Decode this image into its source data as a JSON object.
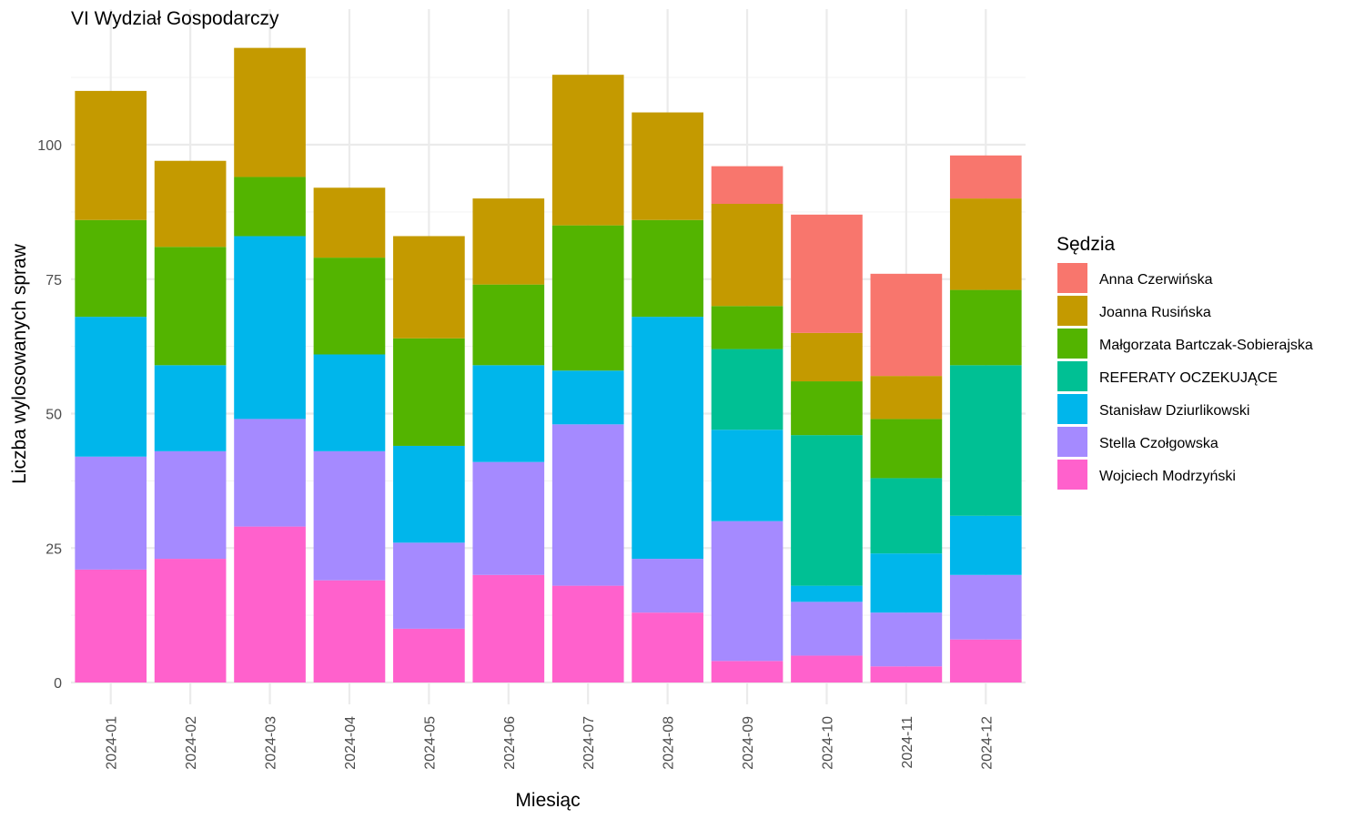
{
  "chart_data": {
    "type": "bar",
    "stacked": true,
    "title": "VI Wydział Gospodarczy",
    "xlabel": "Miesiąc",
    "ylabel": "Liczba wylosowanych spraw",
    "ylim": [
      0,
      120
    ],
    "yticks": [
      0,
      25,
      50,
      75,
      100
    ],
    "grid": true,
    "legend_title": "Sędzia",
    "legend_position": "right",
    "categories": [
      "2024-01",
      "2024-02",
      "2024-03",
      "2024-04",
      "2024-05",
      "2024-06",
      "2024-07",
      "2024-08",
      "2024-09",
      "2024-10",
      "2024-11",
      "2024-12"
    ],
    "series": [
      {
        "name": "Wojciech Modrzyński",
        "color": "#FF61CC",
        "values": [
          21,
          23,
          29,
          19,
          10,
          20,
          18,
          13,
          4,
          5,
          3,
          8
        ]
      },
      {
        "name": "Stella Czołgowska",
        "color": "#A58AFF",
        "values": [
          21,
          20,
          20,
          24,
          16,
          21,
          30,
          10,
          26,
          10,
          10,
          12
        ]
      },
      {
        "name": "Stanisław Dziurlikowski",
        "color": "#00B6EB",
        "values": [
          26,
          16,
          34,
          18,
          18,
          18,
          10,
          45,
          17,
          3,
          11,
          11
        ]
      },
      {
        "name": "REFERATY OCZEKUJĄCE",
        "color": "#00C094",
        "values": [
          0,
          0,
          0,
          0,
          0,
          0,
          0,
          0,
          15,
          28,
          14,
          28
        ]
      },
      {
        "name": "Małgorzata Bartczak-Sobierajska",
        "color": "#53B400",
        "values": [
          18,
          22,
          11,
          18,
          20,
          15,
          27,
          18,
          8,
          10,
          11,
          14
        ]
      },
      {
        "name": "Joanna Rusińska",
        "color": "#C49A00",
        "values": [
          24,
          16,
          24,
          13,
          19,
          16,
          28,
          20,
          19,
          9,
          8,
          17
        ]
      },
      {
        "name": "Anna Czerwińska",
        "color": "#F8766D",
        "values": [
          0,
          0,
          0,
          0,
          0,
          0,
          0,
          0,
          7,
          22,
          19,
          8
        ]
      }
    ],
    "legend_order": [
      "Anna Czerwińska",
      "Joanna Rusińska",
      "Małgorzata Bartczak-Sobierajska",
      "REFERATY OCZEKUJĄCE",
      "Stanisław Dziurlikowski",
      "Stella Czołgowska",
      "Wojciech Modrzyński"
    ]
  }
}
